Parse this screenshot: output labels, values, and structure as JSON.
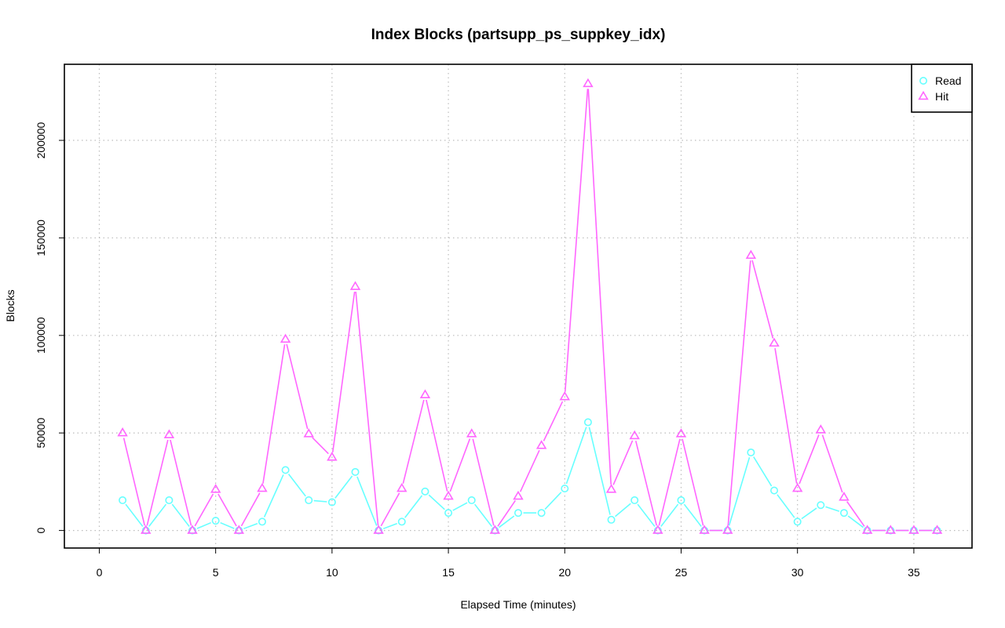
{
  "chart_data": {
    "type": "line",
    "title": "Index Blocks (partsupp_ps_suppkey_idx)",
    "xlabel": "Elapsed Time (minutes)",
    "ylabel": "Blocks",
    "xlim": [
      -1.5,
      37.5
    ],
    "ylim": [
      -9000,
      239000
    ],
    "xticks": [
      0,
      5,
      10,
      15,
      20,
      25,
      30,
      35
    ],
    "xtick_labels": [
      "0",
      "5",
      "10",
      "15",
      "20",
      "25",
      "30",
      "35"
    ],
    "yticks": [
      0,
      50000,
      100000,
      150000,
      200000
    ],
    "ytick_labels": [
      "0",
      "50000",
      "100000",
      "150000",
      "200000"
    ],
    "grid": true,
    "legend_position": "top-right",
    "x": [
      1,
      2,
      3,
      4,
      5,
      6,
      7,
      8,
      9,
      10,
      11,
      12,
      13,
      14,
      15,
      16,
      17,
      18,
      19,
      20,
      21,
      22,
      23,
      24,
      25,
      26,
      27,
      28,
      29,
      30,
      31,
      32,
      33,
      34,
      35,
      36
    ],
    "series": [
      {
        "name": "Read",
        "color": "#66ffff",
        "marker": "circle",
        "values": [
          15500,
          0,
          15500,
          0,
          5000,
          0,
          4500,
          31000,
          15500,
          14500,
          30000,
          0,
          4500,
          20000,
          9000,
          15500,
          0,
          9000,
          9000,
          21500,
          55500,
          5500,
          15500,
          0,
          15500,
          0,
          0,
          40000,
          20500,
          4500,
          13000,
          9000,
          0,
          0,
          0,
          0
        ]
      },
      {
        "name": "Hit",
        "color": "#ff66ff",
        "marker": "triangle",
        "values": [
          50000,
          0,
          49000,
          0,
          21000,
          0,
          21500,
          98000,
          49500,
          37500,
          125000,
          0,
          21500,
          69500,
          17500,
          49500,
          0,
          17500,
          43500,
          68500,
          229000,
          21000,
          48500,
          0,
          49500,
          0,
          0,
          141000,
          96000,
          21500,
          51500,
          17000,
          0,
          0,
          0,
          0
        ]
      }
    ]
  }
}
